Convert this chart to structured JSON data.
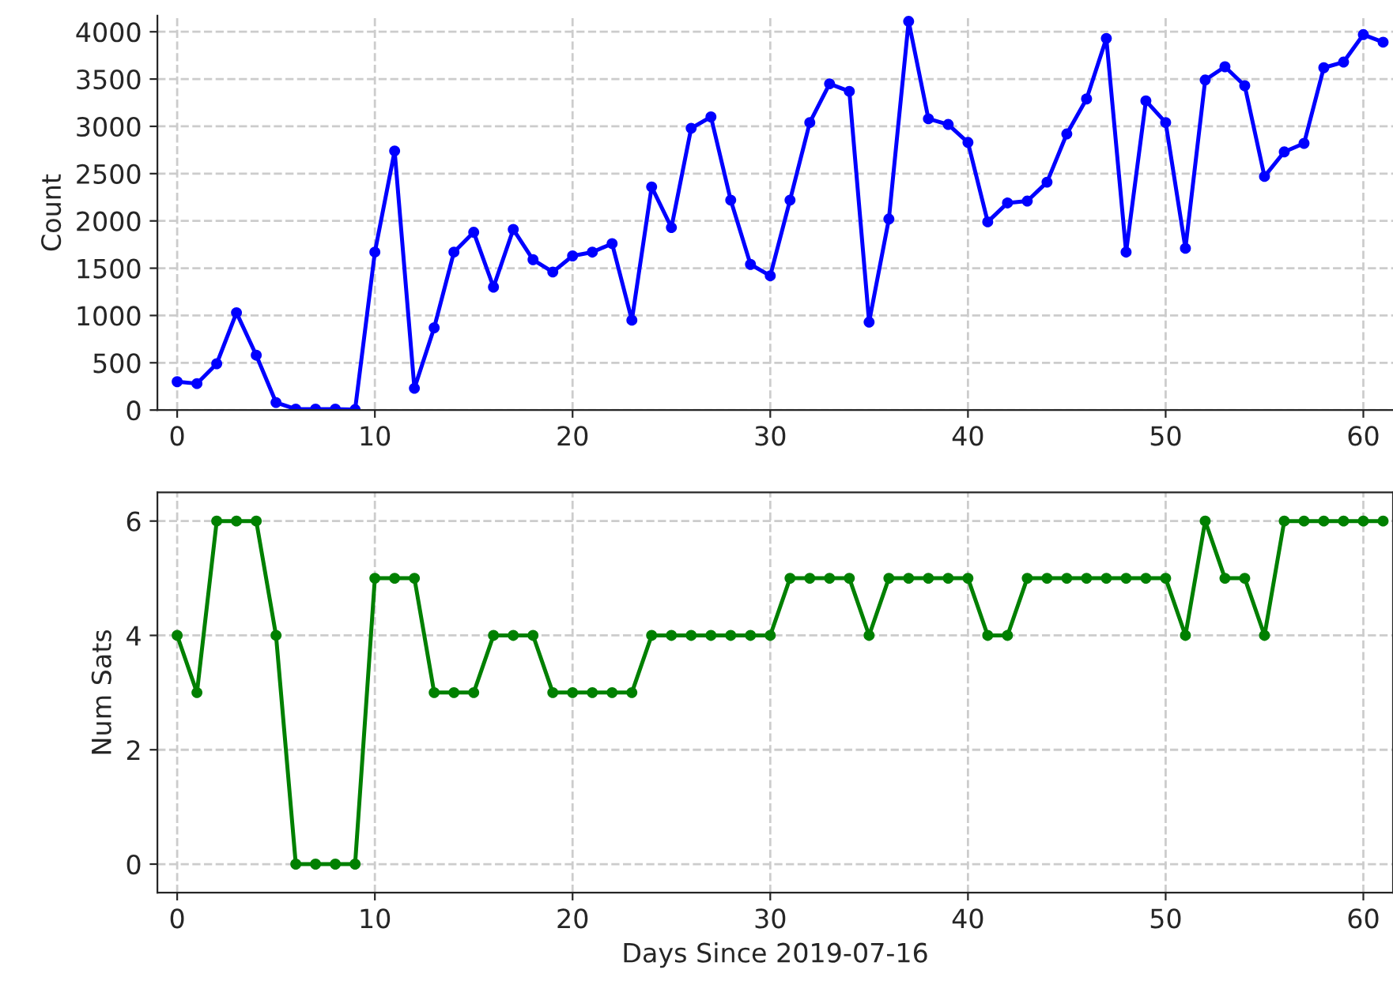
{
  "chart_data": [
    {
      "type": "line",
      "ylabel": "Count",
      "x": [
        0,
        1,
        2,
        3,
        4,
        5,
        6,
        7,
        8,
        9,
        10,
        11,
        12,
        13,
        14,
        15,
        16,
        17,
        18,
        19,
        20,
        21,
        22,
        23,
        24,
        25,
        26,
        27,
        28,
        29,
        30,
        31,
        32,
        33,
        34,
        35,
        36,
        37,
        38,
        39,
        40,
        41,
        42,
        43,
        44,
        45,
        46,
        47,
        48,
        49,
        50,
        51,
        52,
        53,
        54,
        55,
        56,
        57,
        58,
        59,
        60,
        61
      ],
      "series": [
        {
          "color": "#0000ff",
          "values": [
            300,
            280,
            490,
            1030,
            580,
            80,
            10,
            10,
            10,
            5,
            1670,
            2740,
            230,
            870,
            1670,
            1880,
            1300,
            1910,
            1590,
            1460,
            1630,
            1670,
            1760,
            950,
            2360,
            1930,
            2980,
            3100,
            2220,
            1540,
            1420,
            2220,
            3040,
            3450,
            3370,
            930,
            2020,
            4110,
            3080,
            3020,
            2830,
            1990,
            2190,
            2210,
            2410,
            2920,
            3290,
            3930,
            1670,
            3270,
            3040,
            1710,
            3490,
            3630,
            3430,
            2470,
            2730,
            2820,
            3620,
            3680,
            3970,
            3890
          ]
        }
      ],
      "xlim": [
        -1,
        61.5
      ],
      "xticks": [
        0,
        10,
        20,
        30,
        40,
        50,
        60
      ],
      "ylim": [
        0,
        4170
      ],
      "yticks": [
        0,
        500,
        1000,
        1500,
        2000,
        2500,
        3000,
        3500,
        4000
      ],
      "grid": true,
      "marker": "circle",
      "line_style": "solid"
    },
    {
      "type": "line",
      "xlabel": "Days Since 2019-07-16",
      "ylabel": "Num Sats",
      "x": [
        0,
        1,
        2,
        3,
        4,
        5,
        6,
        7,
        8,
        9,
        10,
        11,
        12,
        13,
        14,
        15,
        16,
        17,
        18,
        19,
        20,
        21,
        22,
        23,
        24,
        25,
        26,
        27,
        28,
        29,
        30,
        31,
        32,
        33,
        34,
        35,
        36,
        37,
        38,
        39,
        40,
        41,
        42,
        43,
        44,
        45,
        46,
        47,
        48,
        49,
        50,
        51,
        52,
        53,
        54,
        55,
        56,
        57,
        58,
        59,
        60,
        61
      ],
      "series": [
        {
          "color": "#008000",
          "values": [
            4,
            3,
            6,
            6,
            6,
            4,
            0,
            0,
            0,
            0,
            5,
            5,
            5,
            3,
            3,
            3,
            4,
            4,
            4,
            3,
            3,
            3,
            3,
            3,
            4,
            4,
            4,
            4,
            4,
            4,
            4,
            5,
            5,
            5,
            5,
            4,
            5,
            5,
            5,
            5,
            5,
            4,
            4,
            5,
            5,
            5,
            5,
            5,
            5,
            5,
            5,
            4,
            6,
            5,
            5,
            4,
            6,
            6,
            6,
            6,
            6,
            6
          ]
        }
      ],
      "xlim": [
        -1,
        61.5
      ],
      "xticks": [
        0,
        10,
        20,
        30,
        40,
        50,
        60
      ],
      "ylim": [
        -0.5,
        6.5
      ],
      "yticks": [
        0,
        2,
        4,
        6
      ],
      "grid": true,
      "marker": "circle",
      "line_style": "solid"
    }
  ]
}
